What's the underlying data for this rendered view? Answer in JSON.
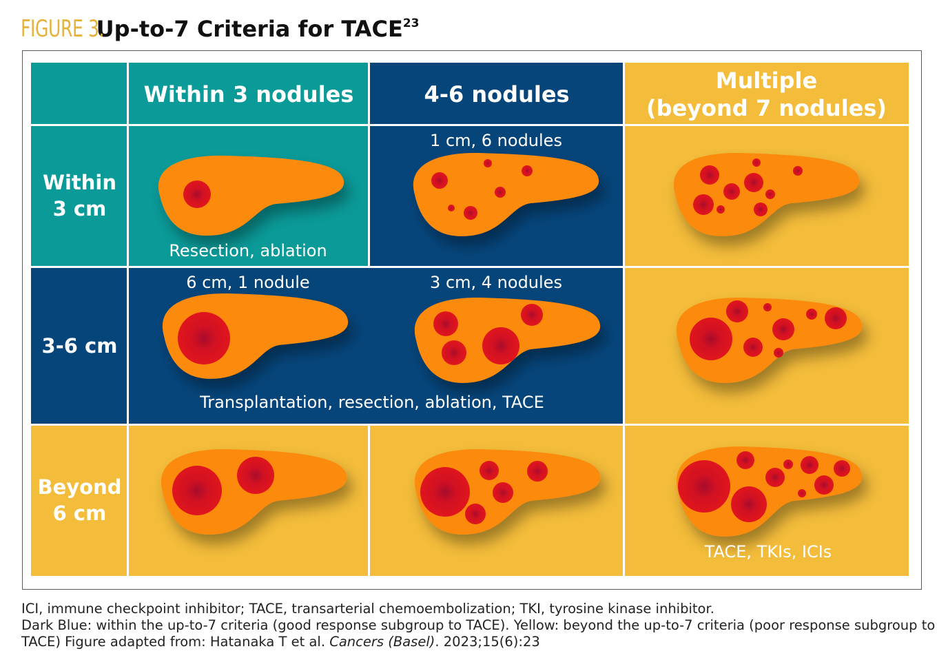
{
  "title": {
    "label": "FIGURE 3.",
    "heading": "Up-to-7 Criteria for TACE",
    "superscript": "23"
  },
  "columns": [
    "Within 3 nodules",
    "4-6 nodules",
    "Multiple",
    "(beyond 7 nodules)"
  ],
  "rows": [
    [
      "Within",
      "3 cm"
    ],
    [
      "3-6 cm"
    ],
    [
      "Beyond",
      "6 cm"
    ]
  ],
  "cell_labels": {
    "r1c2_top": "1 cm, 6 nodules",
    "r2c1_top": "6 cm, 1 nodule",
    "r2c2_top": "3 cm, 4 nodules"
  },
  "treatments": {
    "within_3cm": "Resection, ablation",
    "three_to_6cm": "Transplantation, resection, ablation, TACE",
    "beyond": "TACE, TKIs, ICIs"
  },
  "colors": {
    "teal": "#0a9a98",
    "navy": "#06457a",
    "gold": "#f3bc3a",
    "liver": "#fb8a0d",
    "tumor": "#d6101f",
    "title_label": "#e5b23c"
  },
  "footnote": {
    "line1": "ICI, immune checkpoint inhibitor; TACE, transarterial chemoembolization; TKI, tyrosine kinase inhibitor.",
    "line2a": "Dark Blue: within the up-to-7 criteria (good response subgroup to TACE). Yellow: beyond the up-to-7 criteria (poor response subgroup to TACE) Figure adapted from: Hatanaka T et al. ",
    "journal": "Cancers (Basel)",
    "line2b": ". 2023;15(6):23"
  }
}
